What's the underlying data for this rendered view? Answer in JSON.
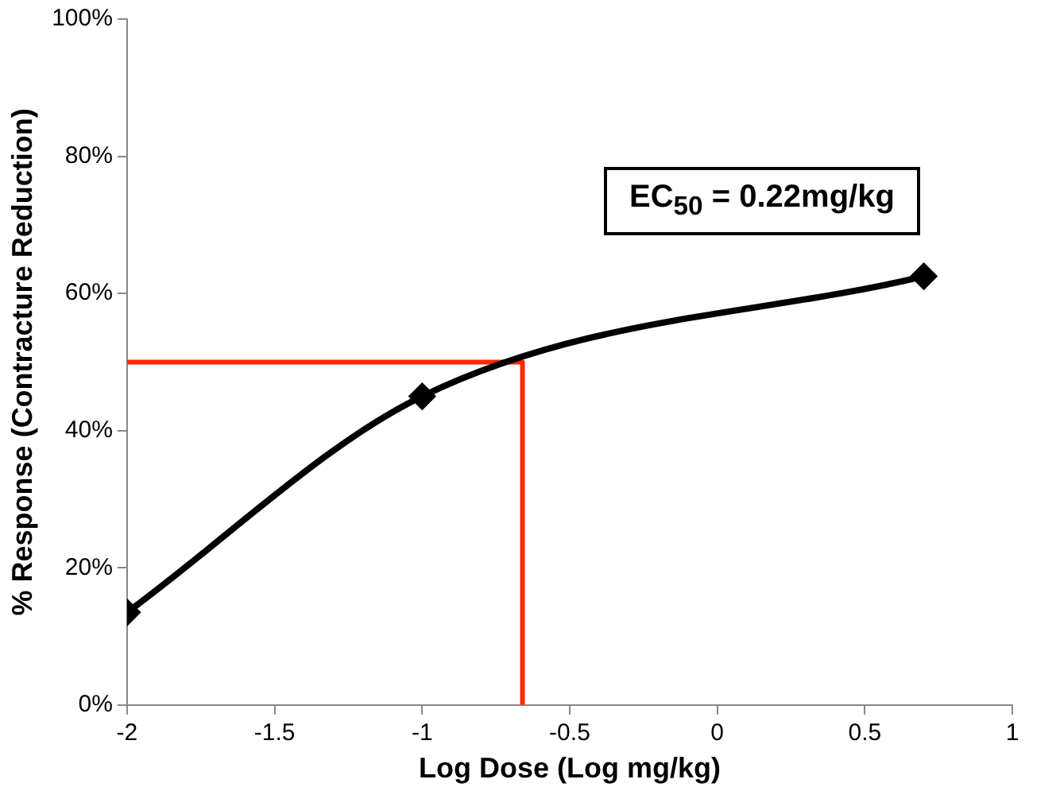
{
  "chart_data": {
    "type": "line",
    "xlabel": "Log Dose (Log mg/kg)",
    "ylabel": "% Response (Contracture Reduction)",
    "annotations": [
      "EC$_{50}$ =  0.22mg/kg"
    ],
    "xlim": [
      -2,
      1
    ],
    "xticks": [
      -2,
      -1.5,
      -1,
      -0.5,
      0,
      0.5,
      1
    ],
    "ylim": [
      0,
      100
    ],
    "yticks": [
      {
        "value": 0,
        "label": "0%"
      },
      {
        "value": 20,
        "label": "20%"
      },
      {
        "value": 40,
        "label": "40%"
      },
      {
        "value": 60,
        "label": "60%"
      },
      {
        "value": 80,
        "label": "80%"
      },
      {
        "value": 100,
        "label": "100%"
      }
    ],
    "grid": false,
    "legend": false,
    "marker": "diamond",
    "line_style": "solid",
    "series": [
      {
        "color": "#000000",
        "x": [
          -2,
          -1,
          0.7
        ],
        "values": [
          13.5,
          45,
          62.5
        ]
      },
      {
        "color": "#ff2a00",
        "marker": "none",
        "x": [
          -2,
          -0.66,
          -0.66
        ],
        "values": [
          50,
          50,
          0
        ]
      }
    ]
  }
}
